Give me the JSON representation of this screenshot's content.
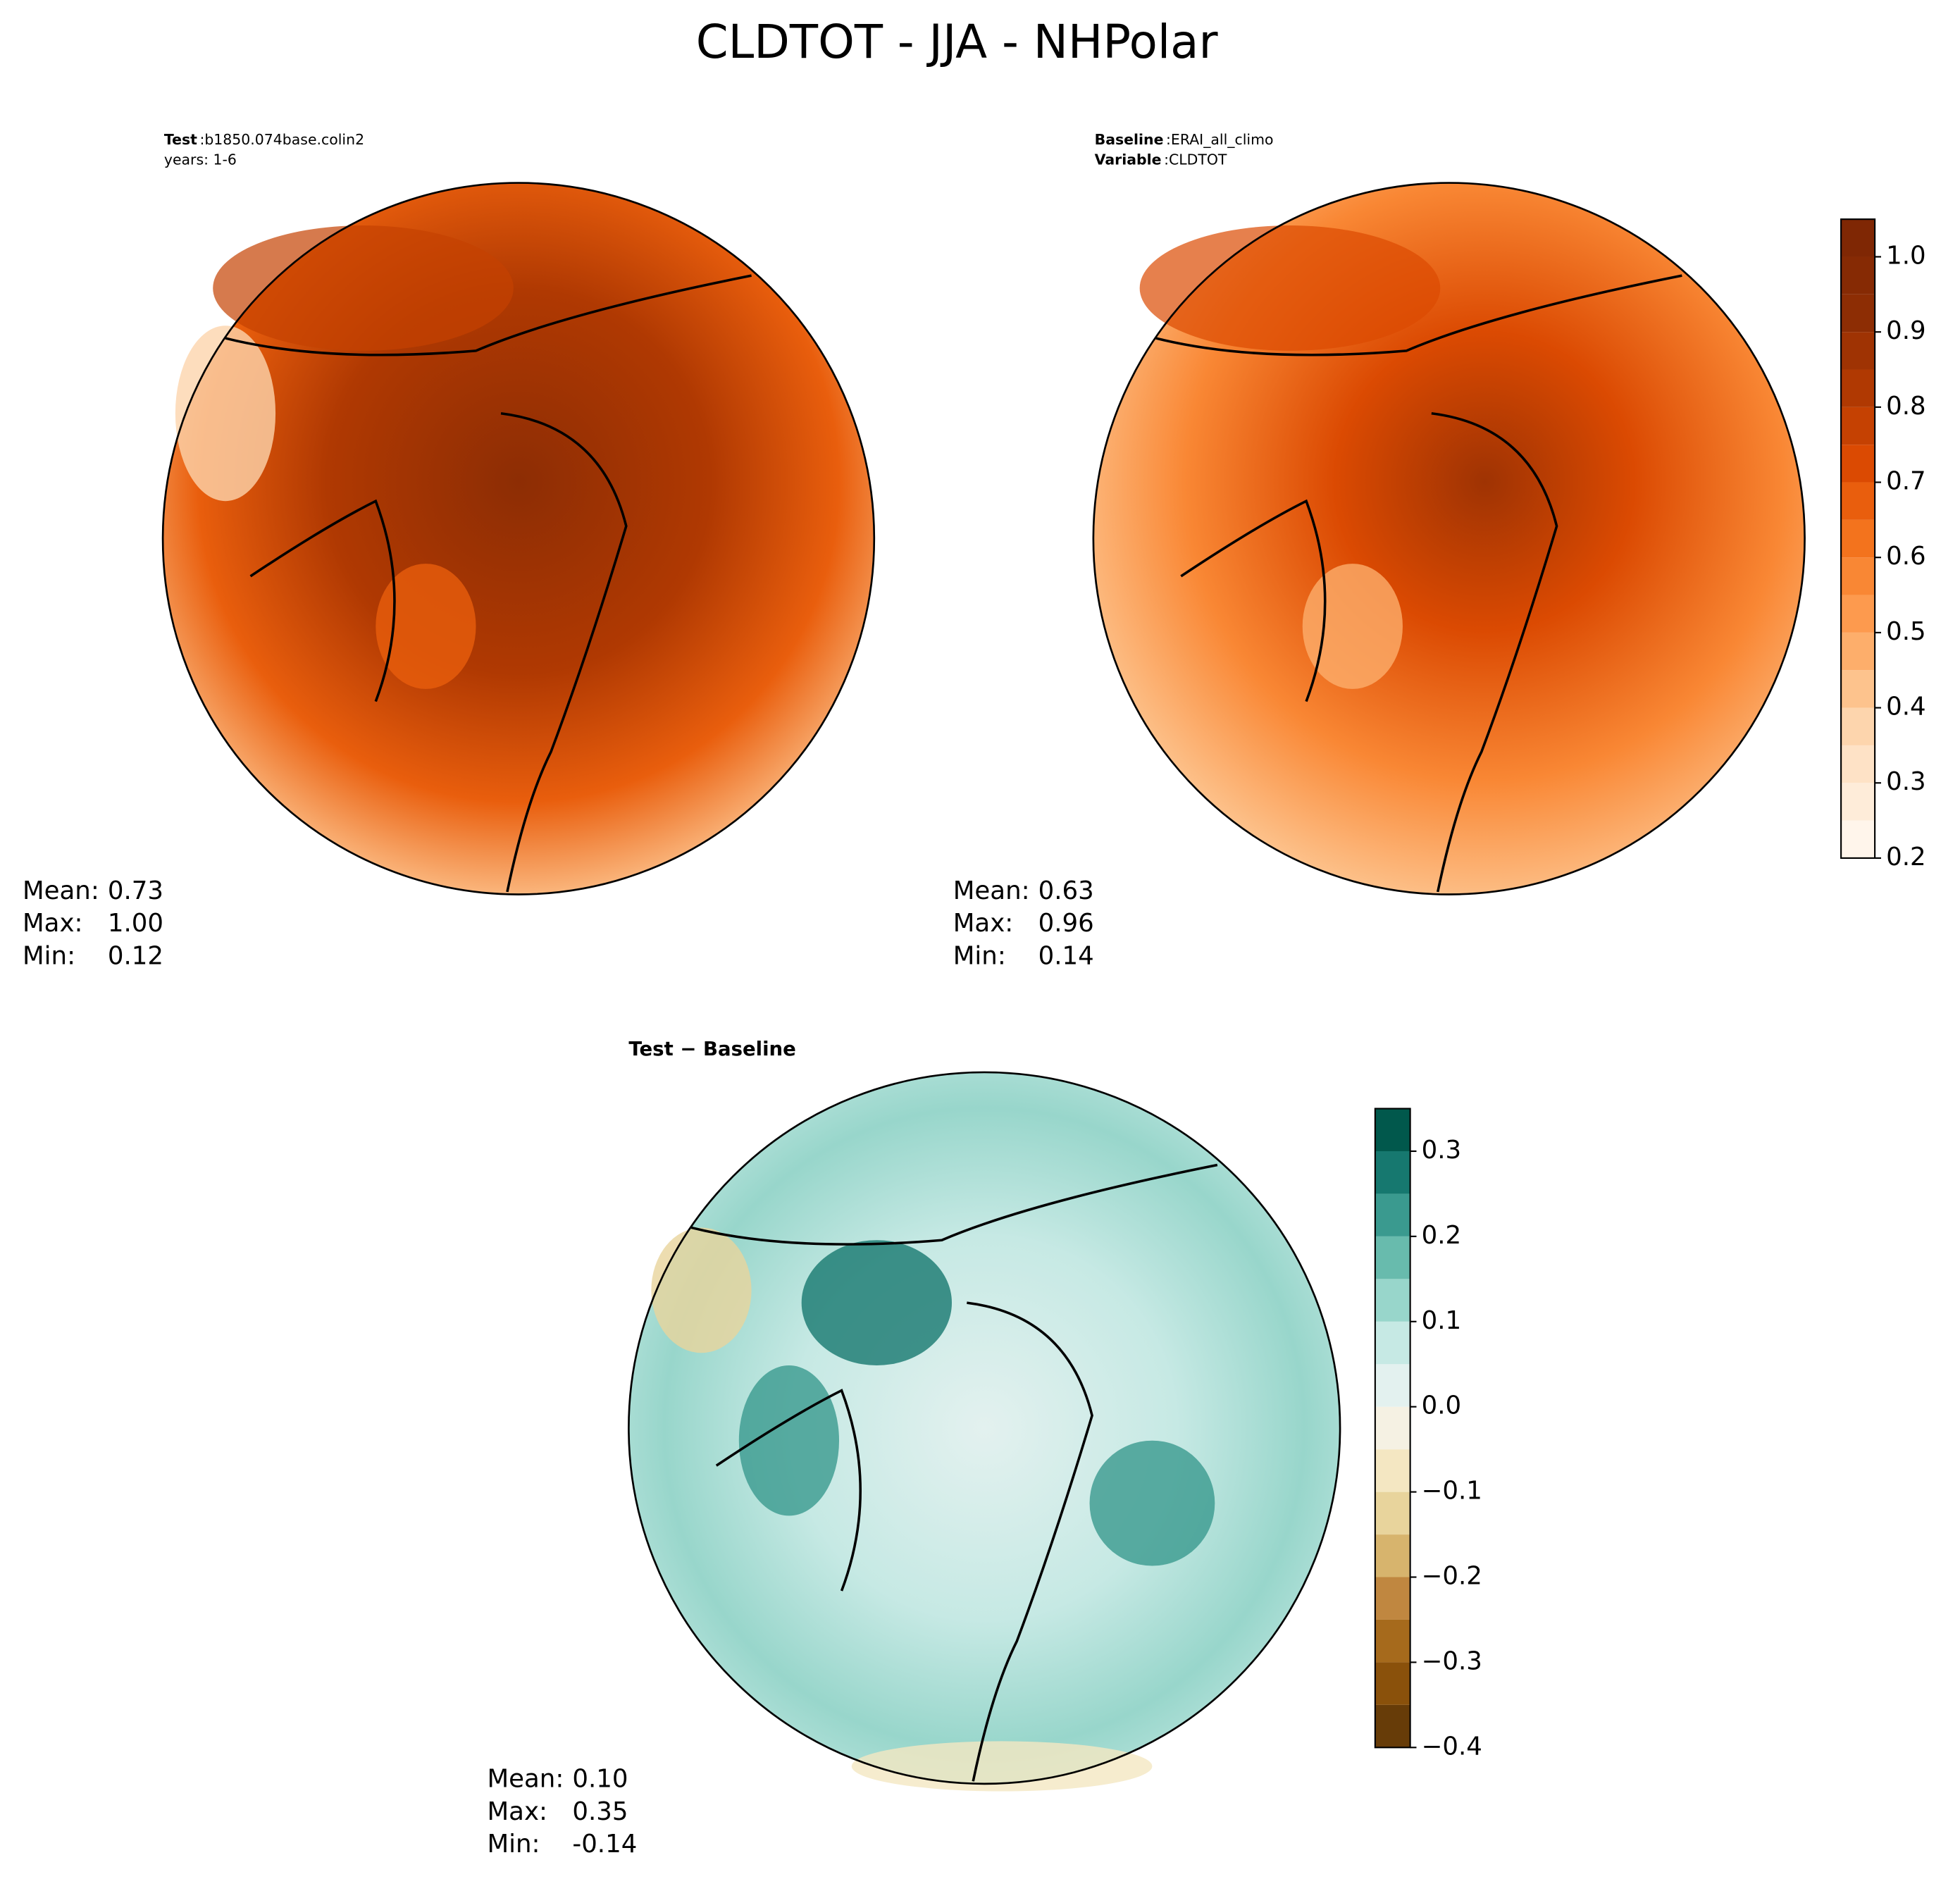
{
  "title": "CLDTOT - JJA - NHPolar",
  "separator": ":",
  "panels": [
    {
      "header": [
        {
          "key": "Test",
          "text": "b1850.074base.colin2"
        },
        {
          "text": "years: 1-6"
        }
      ],
      "stats": [
        {
          "label": "Mean:",
          "value": "0.73"
        },
        {
          "label": "Max:",
          "value": "1.00"
        },
        {
          "label": "Min:",
          "value": "0.12"
        }
      ]
    },
    {
      "header": [
        {
          "key": "Baseline",
          "text": "ERAI_all_climo"
        },
        {
          "key": "Variable",
          "text": "CLDTOT"
        }
      ],
      "stats": [
        {
          "label": "Mean:",
          "value": "0.63"
        },
        {
          "label": "Max:",
          "value": "0.96"
        },
        {
          "label": "Min:",
          "value": "0.14"
        }
      ]
    },
    {
      "title": "Test − Baseline",
      "stats": [
        {
          "label": "Mean:",
          "value": "0.10"
        },
        {
          "label": "Max:",
          "value": "0.35"
        },
        {
          "label": "Min:",
          "value": "-0.14"
        }
      ]
    }
  ],
  "colorbars": [
    {
      "ylim": [
        0.2,
        1.05
      ],
      "levels": [
        0.2,
        0.25,
        0.3,
        0.35,
        0.4,
        0.45,
        0.5,
        0.55,
        0.6,
        0.65,
        0.7,
        0.75,
        0.8,
        0.85,
        0.9,
        0.95,
        1.0,
        1.05
      ],
      "colors": [
        "#fff5eb",
        "#feecd9",
        "#fee2c6",
        "#fdd5ad",
        "#fdc38d",
        "#fdae6b",
        "#fd9a4e",
        "#f98734",
        "#f3731d",
        "#e95e0d",
        "#db4a02",
        "#c54102",
        "#b03902",
        "#9f3303",
        "#8d2d04",
        "#862a04",
        "#7f2704"
      ],
      "yticks": [
        0.2,
        0.3,
        0.4,
        0.5,
        0.6,
        0.7,
        0.8,
        0.9,
        {
          "value": 1.0,
          "label": "1.0"
        }
      ]
    },
    {
      "ylim": [
        -0.4,
        0.35
      ],
      "levels": [
        -0.4,
        -0.35,
        -0.3,
        -0.25,
        -0.2,
        -0.15,
        -0.1,
        -0.05,
        0.0,
        0.05,
        0.1,
        0.15,
        0.2,
        0.25,
        0.3,
        0.35
      ],
      "colors": [
        "#673c08",
        "#8a510b",
        "#a66a1c",
        "#c08740",
        "#d7b46d",
        "#e8d49c",
        "#f4e7c2",
        "#f5f1e3",
        "#e3f1ef",
        "#c6e9e4",
        "#98d6cb",
        "#68bbad",
        "#3a9a8f",
        "#16786f",
        "#01584c"
      ],
      "yticks": [
        {
          "value": -0.4,
          "label": "−0.4"
        },
        {
          "value": -0.3,
          "label": "−0.3"
        },
        {
          "value": -0.2,
          "label": "−0.2"
        },
        {
          "value": -0.1,
          "label": "−0.1"
        },
        {
          "value": 0.0,
          "label": "0.0"
        },
        0.1,
        0.2,
        0.3
      ]
    }
  ]
}
